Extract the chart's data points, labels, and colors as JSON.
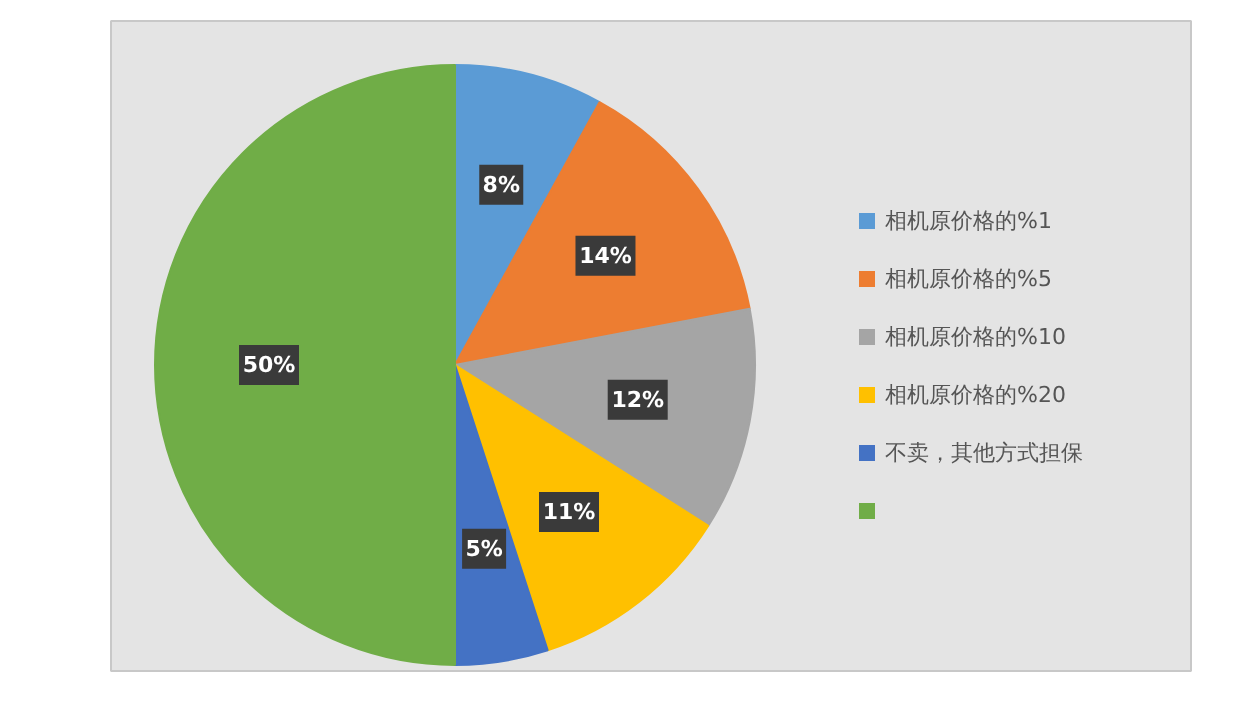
{
  "chart_data": {
    "type": "pie",
    "categories": [
      "相机原价格的%1",
      "相机原价格的%5",
      "相机原价格的%10",
      "相机原价格的%20",
      "不卖，其他方式担保",
      null
    ],
    "values": [
      8,
      14,
      12,
      11,
      5,
      50
    ],
    "value_labels": [
      "8%",
      "14%",
      "12%",
      "11%",
      "5%",
      "50%"
    ],
    "colors": [
      "#5b9bd5",
      "#ed7d31",
      "#a5a5a5",
      "#ffc000",
      "#4472c4",
      "#70ad47"
    ],
    "legend": "right"
  }
}
